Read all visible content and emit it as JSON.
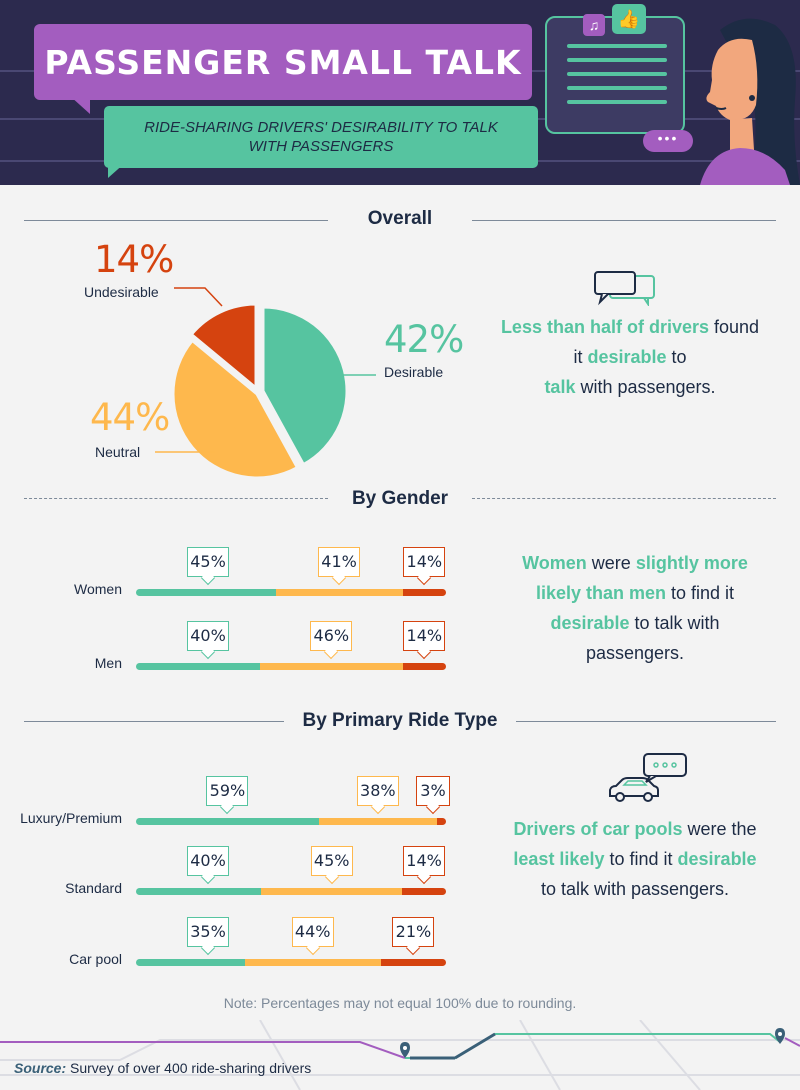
{
  "header": {
    "title": "PASSENGER SMALL TALK",
    "subtitle": "RIDE-SHARING DRIVERS' DESIRABILITY TO TALK WITH PASSENGERS",
    "dots": "•••"
  },
  "colors": {
    "desirable": "#56c4a0",
    "neutral": "#feb84d",
    "undesirable": "#d5430f",
    "purple": "#a35dbf",
    "navy": "#1d2b44"
  },
  "sections": {
    "overall": "Overall",
    "gender": "By Gender",
    "ride": "By Primary Ride Type"
  },
  "chart_data": [
    {
      "type": "pie",
      "title": "Overall",
      "slices": [
        {
          "label": "Desirable",
          "value": 42,
          "display": "42%"
        },
        {
          "label": "Neutral",
          "value": 44,
          "display": "44%"
        },
        {
          "label": "Undesirable",
          "value": 14,
          "display": "14%"
        }
      ]
    },
    {
      "type": "bar",
      "title": "By Gender",
      "stacked": true,
      "orientation": "horizontal",
      "categories": [
        "Women",
        "Men"
      ],
      "series": [
        {
          "name": "Desirable",
          "values": [
            45,
            40
          ],
          "labels": [
            "45%",
            "40%"
          ]
        },
        {
          "name": "Neutral",
          "values": [
            41,
            46
          ],
          "labels": [
            "41%",
            "46%"
          ]
        },
        {
          "name": "Undesirable",
          "values": [
            14,
            14
          ],
          "labels": [
            "14%",
            "14%"
          ]
        }
      ]
    },
    {
      "type": "bar",
      "title": "By Primary Ride Type",
      "stacked": true,
      "orientation": "horizontal",
      "categories": [
        "Luxury/Premium",
        "Standard",
        "Car pool"
      ],
      "series": [
        {
          "name": "Desirable",
          "values": [
            59,
            40,
            35
          ],
          "labels": [
            "59%",
            "40%",
            "35%"
          ]
        },
        {
          "name": "Neutral",
          "values": [
            38,
            45,
            44
          ],
          "labels": [
            "38%",
            "45%",
            "44%"
          ]
        },
        {
          "name": "Undesirable",
          "values": [
            3,
            14,
            21
          ],
          "labels": [
            "3%",
            "14%",
            "21%"
          ]
        }
      ]
    }
  ],
  "callouts": {
    "overall": {
      "p1": "Less than half of drivers",
      "p2": " found it ",
      "p3": "desirable",
      "p4": " to ",
      "p5": "talk",
      "p6": " with passengers."
    },
    "gender": {
      "p1": "Women",
      "p2": " were ",
      "p3": "slightly more likely than men",
      "p4": " to find it ",
      "p5": "desirable",
      "p6": " to talk with passengers."
    },
    "ride": {
      "p1": "Drivers of car pools",
      "p2": " were the ",
      "p3": "least likely",
      "p4": " to find it ",
      "p5": "desirable",
      "p6": " to talk with passengers."
    }
  },
  "footer": {
    "note": "Note: Percentages may not equal 100% due to rounding.",
    "source_label": "Source:",
    "source_text": " Survey of over 400 ride-sharing drivers"
  }
}
